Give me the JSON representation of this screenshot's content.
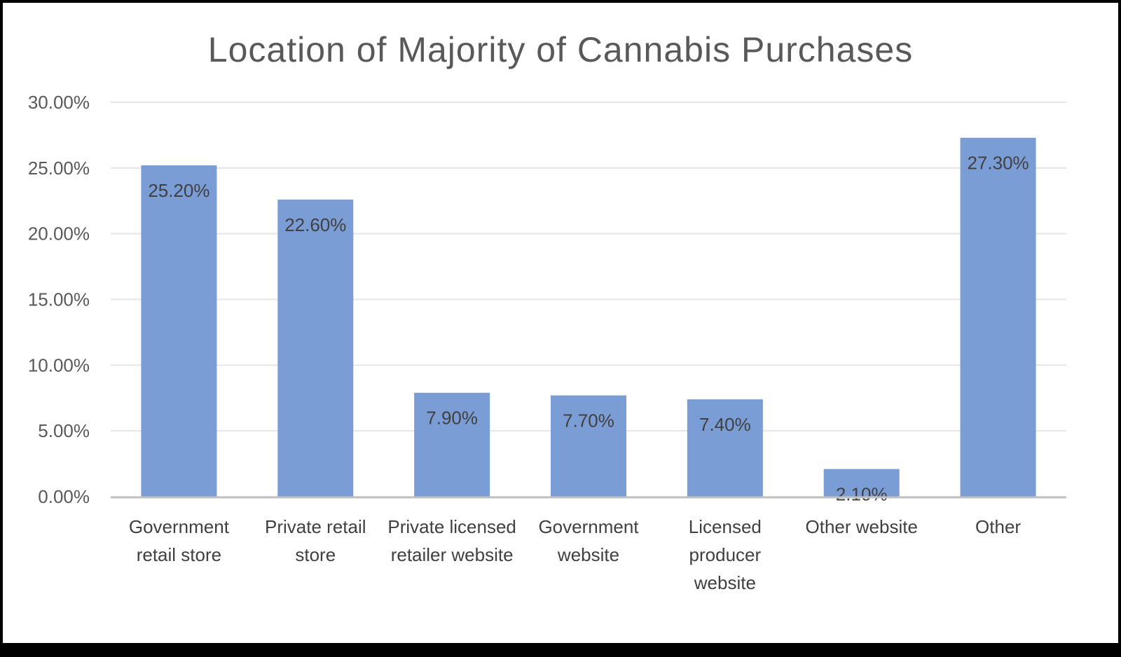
{
  "chart_data": {
    "type": "bar",
    "title": "Location of Majority of Cannabis Purchases",
    "categories": [
      "Government retail store",
      "Private retail store",
      "Private licensed retailer website",
      "Government website",
      "Licensed producer website",
      "Other website",
      "Other"
    ],
    "values": [
      25.2,
      22.6,
      7.9,
      7.7,
      7.4,
      2.1,
      27.3
    ],
    "data_labels": [
      "25.20%",
      "22.60%",
      "7.90%",
      "7.70%",
      "7.40%",
      "2.10%",
      "27.30%"
    ],
    "yticks": [
      "0.00%",
      "5.00%",
      "10.00%",
      "15.00%",
      "20.00%",
      "25.00%",
      "30.00%"
    ],
    "ylim": [
      0,
      30
    ],
    "xlabel": "",
    "ylabel": "",
    "grid": true,
    "legend": "none",
    "colors": {
      "bar": "#7b9dd6",
      "grid": "#e6e6e6",
      "axis": "#bfbfbf",
      "text": "#404040"
    }
  }
}
